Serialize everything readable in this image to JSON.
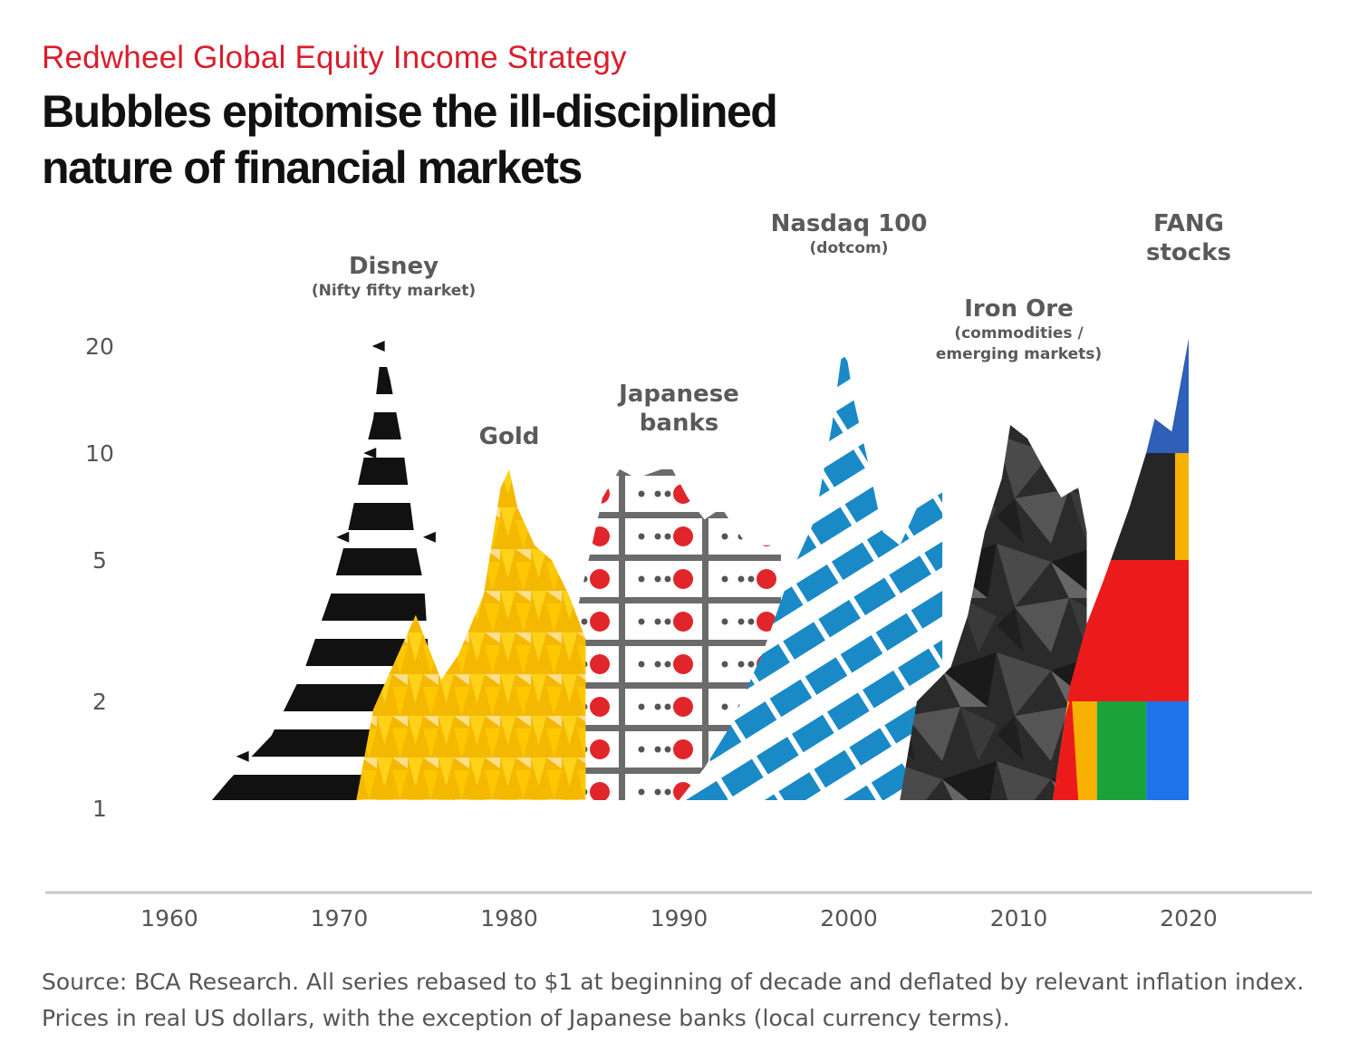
{
  "supertitle": "Redwheel Global Equity Income Strategy",
  "title_line1": "Bubbles epitomise the ill-disciplined",
  "title_line2": "nature of financial markets",
  "source": "Source: BCA Research. All series rebased to $1 at beginning of decade and deflated by relevant inflation index. Prices in real US dollars, with the exception of Japanese banks (local currency terms).",
  "colors": {
    "disney": "#111111",
    "gold": "#f5b800",
    "gold_light": "#ffd21a",
    "japan_dot": "#e0262a",
    "japan_grid": "#6b6b6b",
    "nasdaq": "#1a8ac6",
    "ironore": "#2b2b2b",
    "fang_blue": "#2f5fb8",
    "fang_black": "#262626",
    "fang_red": "#ec1b1b",
    "fang_orange": "#f7b100",
    "fang_green": "#1aa33a",
    "fang_lightblue": "#1e73e8"
  },
  "chart_data": {
    "type": "area",
    "x_axis": {
      "ticks": [
        1960,
        1970,
        1980,
        1990,
        2000,
        2010,
        2020
      ],
      "range": [
        1957,
        2027
      ]
    },
    "y_axis": {
      "scale": "log",
      "ticks": [
        "1",
        "2",
        "5",
        "10",
        "20"
      ],
      "tick_values": [
        1,
        2,
        5,
        10,
        20
      ],
      "range": [
        1,
        20
      ]
    },
    "grid": false,
    "series": [
      {
        "name": "Disney",
        "sublabel": "(Nifty fifty market)",
        "points": [
          [
            1962.5,
            1.0
          ],
          [
            1963.5,
            1.2
          ],
          [
            1966,
            1.6
          ],
          [
            1968,
            2.5
          ],
          [
            1969.5,
            4.0
          ],
          [
            1970.5,
            6.0
          ],
          [
            1971.5,
            10.0
          ],
          [
            1972,
            12.5
          ],
          [
            1972.5,
            20.0
          ],
          [
            1973,
            16.0
          ],
          [
            1973.8,
            10.0
          ],
          [
            1974.5,
            5.5
          ],
          [
            1975,
            4.2
          ],
          [
            1975.3,
            2.5
          ],
          [
            1975.5,
            1.0
          ]
        ]
      },
      {
        "name": "Gold",
        "sublabel": "",
        "points": [
          [
            1971,
            1.0
          ],
          [
            1972,
            1.9
          ],
          [
            1974.5,
            3.5
          ],
          [
            1976,
            2.3
          ],
          [
            1977,
            2.7
          ],
          [
            1978.5,
            4.0
          ],
          [
            1979.5,
            8.0
          ],
          [
            1980,
            9.0
          ],
          [
            1980.5,
            7.0
          ],
          [
            1981.5,
            5.5
          ],
          [
            1982.5,
            5.0
          ],
          [
            1983.5,
            4.0
          ],
          [
            1984.5,
            3.0
          ],
          [
            1984.5,
            1.0
          ]
        ]
      },
      {
        "name": "Japanese\nbanks",
        "sublabel": "",
        "points": [
          [
            1981,
            1.0
          ],
          [
            1984,
            3.6
          ],
          [
            1985.5,
            7.5
          ],
          [
            1986.5,
            9.0
          ],
          [
            1987.5,
            8.5
          ],
          [
            1989.5,
            9.2
          ],
          [
            1990.5,
            7.5
          ],
          [
            1991.5,
            6.5
          ],
          [
            1992.5,
            7.0
          ],
          [
            1994,
            5.5
          ],
          [
            1996,
            5.5
          ],
          [
            1996,
            1.0
          ]
        ]
      },
      {
        "name": "Nasdaq 100",
        "sublabel": "(dotcom)",
        "points": [
          [
            1990,
            1.0
          ],
          [
            1991.5,
            1.3
          ],
          [
            1993,
            1.7
          ],
          [
            1995,
            2.8
          ],
          [
            1996.5,
            4.5
          ],
          [
            1998,
            6.5
          ],
          [
            1999,
            12.0
          ],
          [
            1999.7,
            21.0
          ],
          [
            2000.3,
            14.0
          ],
          [
            2001,
            10.0
          ],
          [
            2002,
            6.0
          ],
          [
            2003,
            5.5
          ],
          [
            2004,
            7.0
          ],
          [
            2004.8,
            8.5
          ],
          [
            2005.5,
            9.0
          ],
          [
            2005.5,
            1.0
          ]
        ]
      },
      {
        "name": "Iron Ore",
        "sublabel": "(commodities /\nemerging markets)",
        "points": [
          [
            2003,
            1.0
          ],
          [
            2004,
            2.0
          ],
          [
            2006,
            2.5
          ],
          [
            2007,
            3.5
          ],
          [
            2008,
            6.0
          ],
          [
            2009,
            8.5
          ],
          [
            2009.5,
            12.0
          ],
          [
            2010.5,
            11.0
          ],
          [
            2011.5,
            9.0
          ],
          [
            2012.5,
            7.5
          ],
          [
            2013.5,
            8.0
          ],
          [
            2014,
            6.0
          ],
          [
            2014,
            1.0
          ]
        ]
      },
      {
        "name": "FANG\nstocks",
        "sublabel": "",
        "points": [
          [
            2012,
            1.0
          ],
          [
            2013,
            2.2
          ],
          [
            2014,
            3.3
          ],
          [
            2015,
            4.4
          ],
          [
            2016.5,
            7.0
          ],
          [
            2017.5,
            10.0
          ],
          [
            2018,
            12.5
          ],
          [
            2019,
            11.5
          ],
          [
            2020,
            21.0
          ],
          [
            2020,
            1.0
          ]
        ]
      }
    ]
  }
}
